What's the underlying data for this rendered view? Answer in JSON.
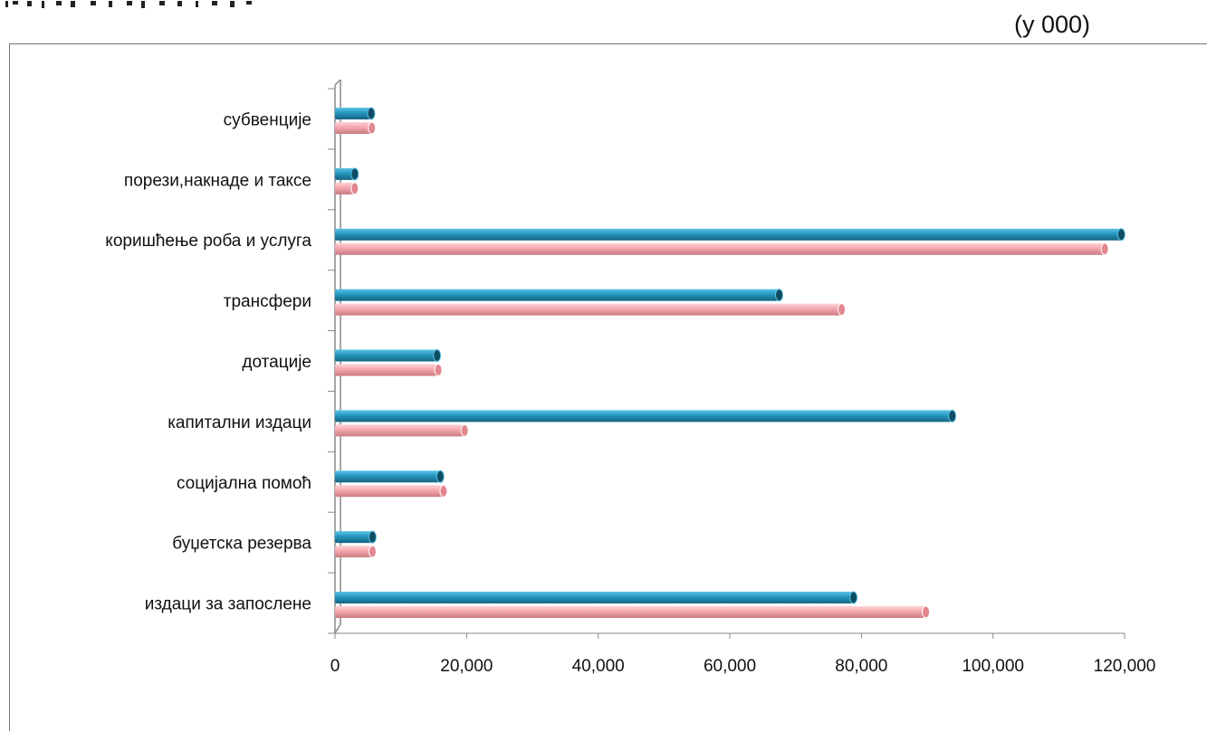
{
  "unit_note": "(у 000)",
  "chart_data": {
    "type": "bar",
    "orientation": "horizontal",
    "categories": [
      "субвенције",
      "порези,накнаде и таксе",
      "коришћење роба и услуга",
      "трансфери",
      "дотације",
      "капитални издаци",
      "социјална помоћ",
      "буџетска резерва",
      "издаци за запослене"
    ],
    "series": [
      {
        "color": "#2596be",
        "values": [
          5500,
          3000,
          119500,
          67500,
          15500,
          93800,
          16000,
          5700,
          78800
        ]
      },
      {
        "color": "#f4a7ad",
        "values": [
          5600,
          3000,
          117000,
          77000,
          15700,
          19700,
          16500,
          5700,
          89800
        ]
      }
    ],
    "x_ticks": [
      "0",
      "20,000",
      "40,000",
      "60,000",
      "80,000",
      "100,000",
      "120,000"
    ],
    "xlim": [
      0,
      120000
    ],
    "grid": false
  }
}
